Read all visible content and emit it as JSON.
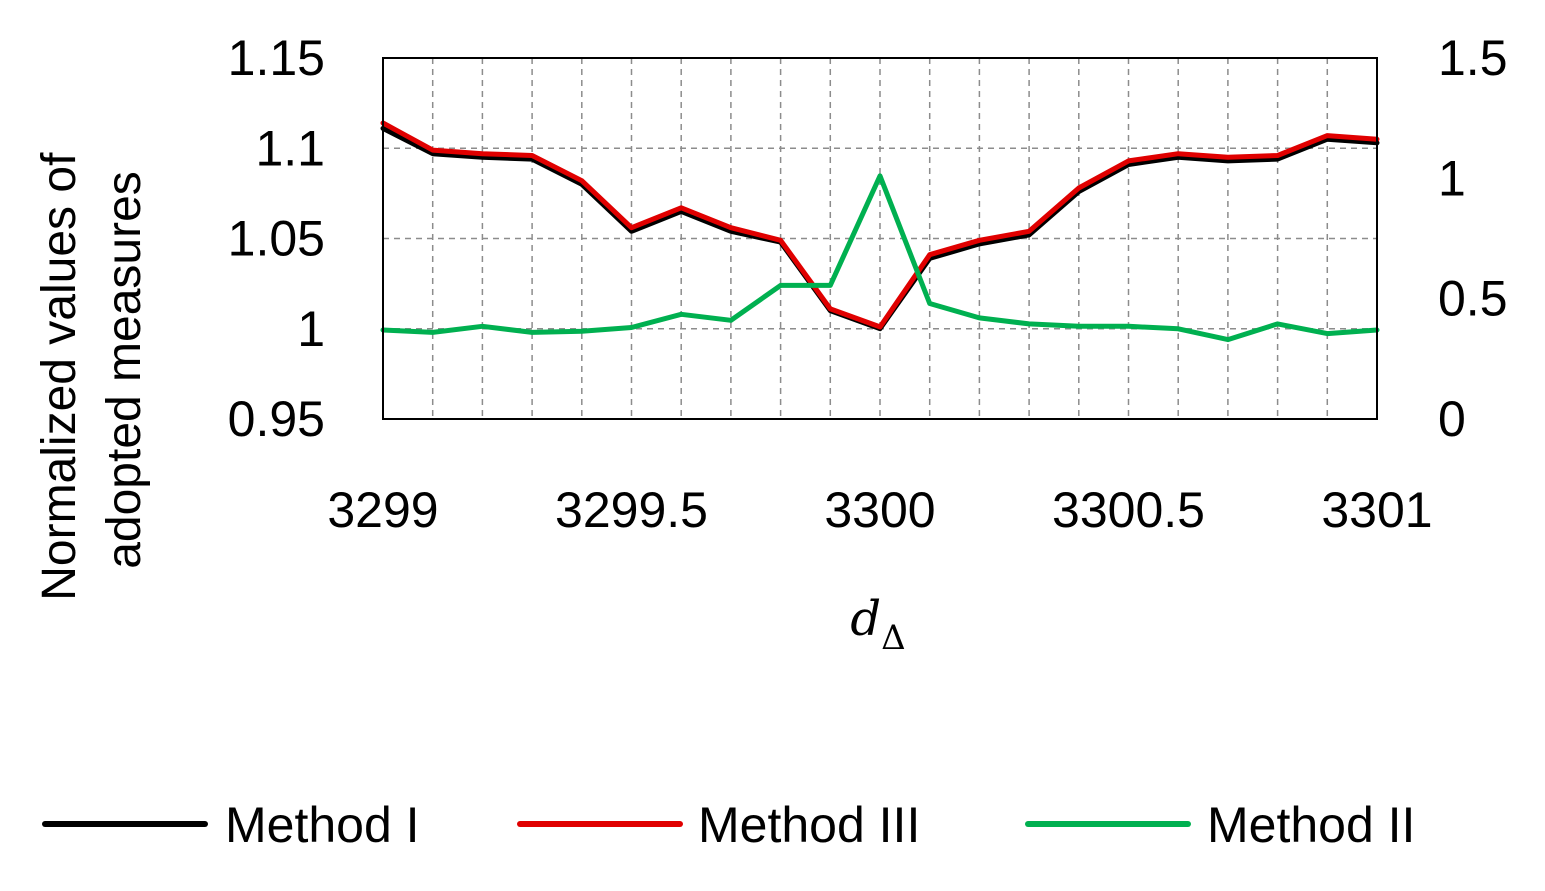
{
  "chart_data": {
    "type": "line",
    "title": "",
    "xlabel": {
      "main": "d",
      "subscript": "Δ"
    },
    "ylabel": [
      "Normalized values of",
      "adopted measures"
    ],
    "ylabel_right": "",
    "xlim": [
      3299,
      3301
    ],
    "ylim": [
      0.95,
      1.15
    ],
    "ylim_right": [
      0,
      1.5
    ],
    "x_ticks": [
      "3299",
      "3299.5",
      "3300",
      "3300.5",
      "3301"
    ],
    "y_ticks": [
      "0.95",
      "1",
      "1.05",
      "1.1",
      "1.15"
    ],
    "y_ticks_right": [
      "0",
      "0.5",
      "1",
      "1.5"
    ],
    "grid": true,
    "legend_position": "bottom",
    "x": [
      3299,
      3299.1,
      3299.2,
      3299.3,
      3299.4,
      3299.5,
      3299.6,
      3299.7,
      3299.8,
      3299.9,
      3300,
      3300.1,
      3300.2,
      3300.3,
      3300.4,
      3300.5,
      3300.6,
      3300.7,
      3300.8,
      3300.9,
      3301
    ],
    "series": [
      {
        "name": "Method I",
        "axis": "left",
        "color": "#000000",
        "values": [
          1.111,
          1.097,
          1.095,
          1.094,
          1.08,
          1.054,
          1.065,
          1.054,
          1.048,
          1.01,
          1.0,
          1.039,
          1.047,
          1.052,
          1.076,
          1.091,
          1.095,
          1.093,
          1.094,
          1.105,
          1.103
        ]
      },
      {
        "name": "Method III",
        "axis": "left",
        "color": "#e00000",
        "values": [
          1.114,
          1.099,
          1.097,
          1.096,
          1.082,
          1.056,
          1.067,
          1.056,
          1.049,
          1.011,
          1.001,
          1.041,
          1.049,
          1.054,
          1.078,
          1.093,
          1.097,
          1.095,
          1.096,
          1.107,
          1.105
        ]
      },
      {
        "name": "Method II",
        "axis": "right",
        "color": "#00b050",
        "values": [
          0.37,
          0.36,
          0.385,
          0.36,
          0.365,
          0.38,
          0.435,
          0.41,
          0.555,
          0.555,
          1.01,
          0.48,
          0.42,
          0.395,
          0.385,
          0.385,
          0.375,
          0.33,
          0.395,
          0.355,
          0.37
        ]
      }
    ]
  }
}
